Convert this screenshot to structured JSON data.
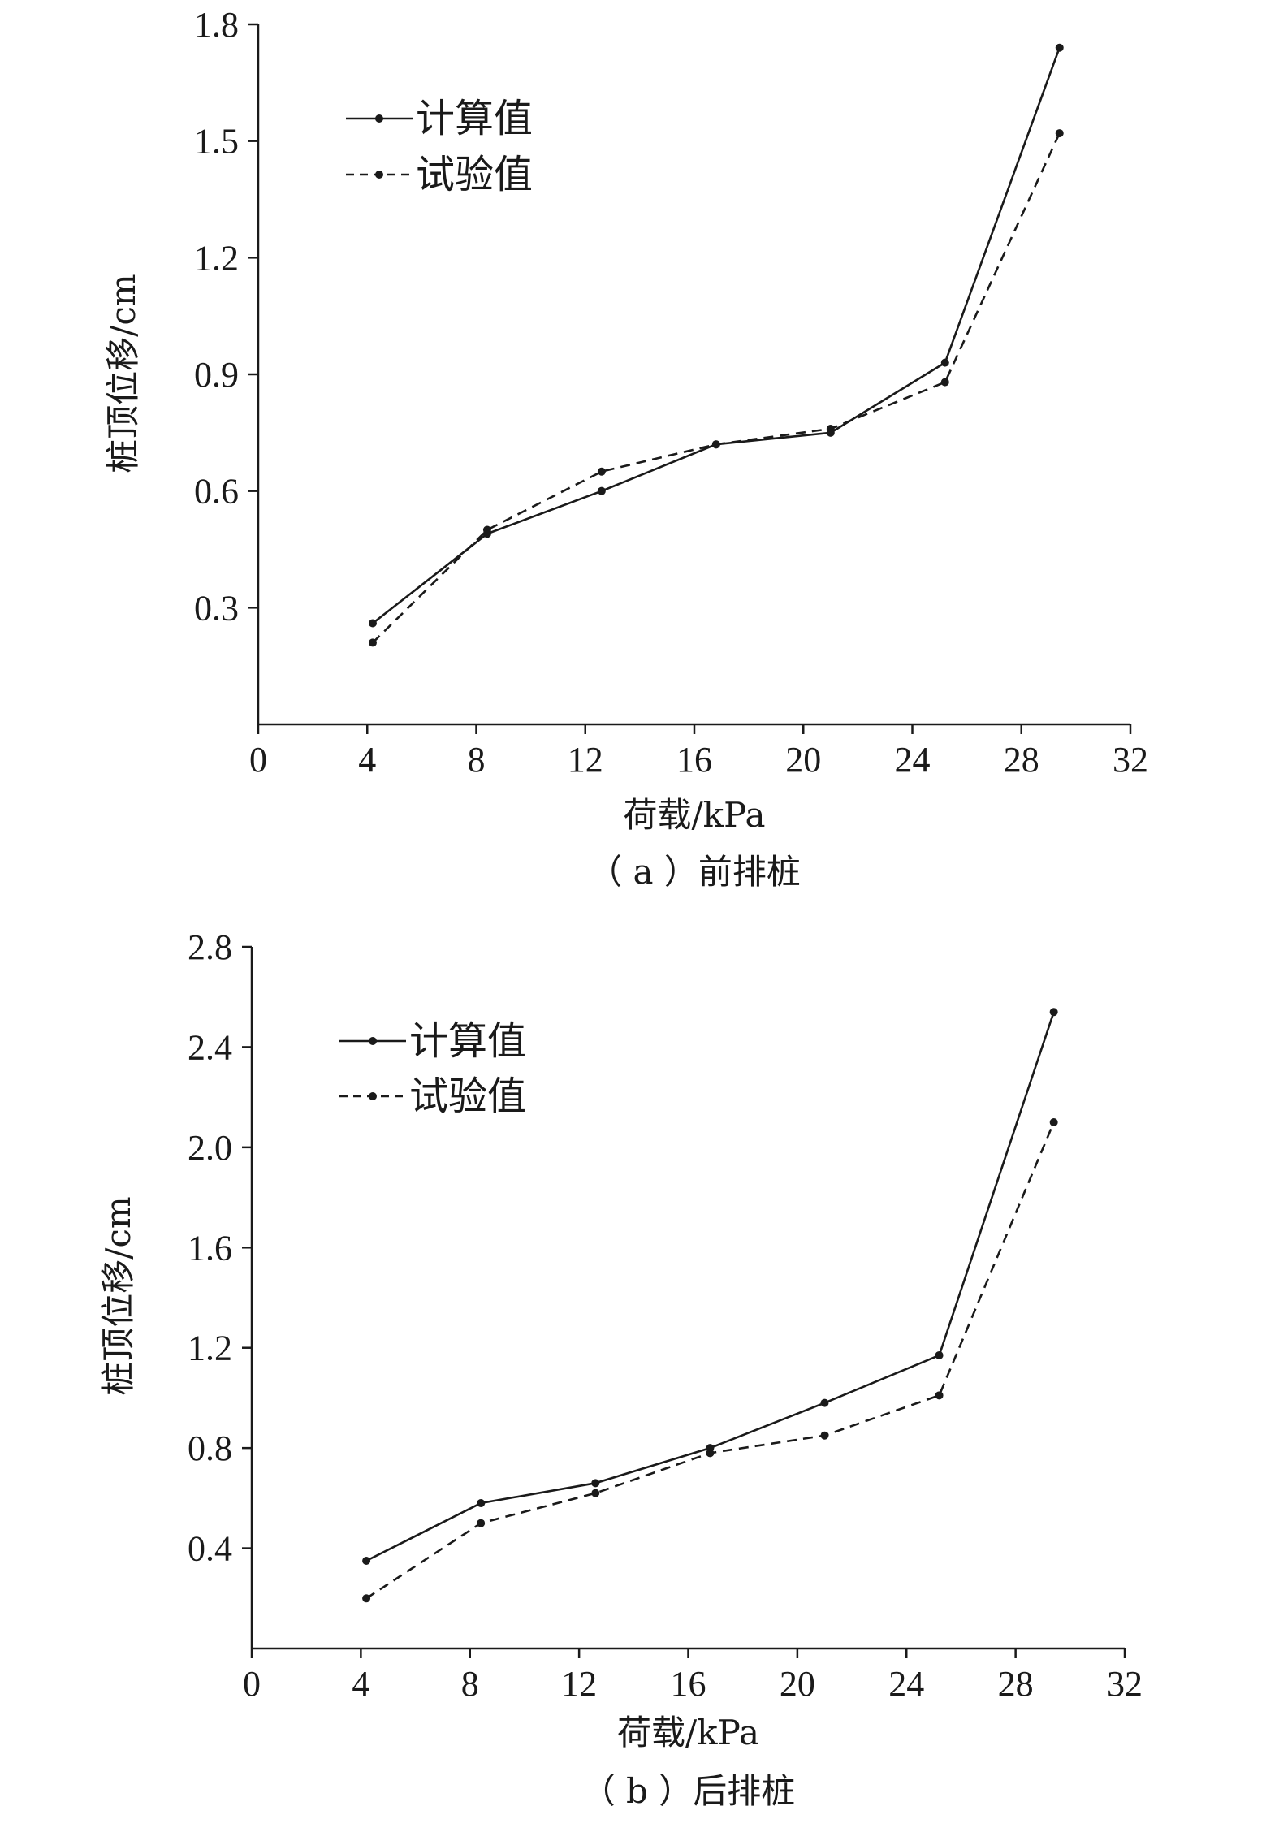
{
  "chart_data": [
    {
      "type": "line",
      "caption": "（ a ）前排桩",
      "xlabel": "荷载/kPa",
      "ylabel": "桩顶位移/cm",
      "xlim": [
        0,
        32
      ],
      "ylim": [
        0,
        1.8
      ],
      "x_ticks": [
        "0",
        "4",
        "8",
        "12",
        "16",
        "20",
        "24",
        "28",
        "32"
      ],
      "y_ticks": [
        "0.3",
        "0.6",
        "0.9",
        "1.2",
        "1.5",
        "1.8"
      ],
      "legend_position": "top-left",
      "x": [
        4.2,
        8.4,
        12.6,
        16.8,
        21.0,
        25.2,
        29.4
      ],
      "series": [
        {
          "name": "计算值",
          "line_style": "solid",
          "values": [
            0.26,
            0.49,
            0.6,
            0.72,
            0.75,
            0.93,
            1.74
          ]
        },
        {
          "name": "试验值",
          "line_style": "dashed",
          "values": [
            0.21,
            0.5,
            0.65,
            0.72,
            0.76,
            0.88,
            1.52
          ]
        }
      ]
    },
    {
      "type": "line",
      "caption": "（ b ）后排桩",
      "xlabel": "荷载/kPa",
      "ylabel": "桩顶位移/cm",
      "xlim": [
        0,
        32
      ],
      "ylim": [
        0,
        2.8
      ],
      "x_ticks": [
        "0",
        "4",
        "8",
        "12",
        "16",
        "20",
        "24",
        "28",
        "32"
      ],
      "y_ticks": [
        "0.4",
        "0.8",
        "1.2",
        "1.6",
        "2.0",
        "2.4",
        "2.8"
      ],
      "legend_position": "top-left",
      "x": [
        4.2,
        8.4,
        12.6,
        16.8,
        21.0,
        25.2,
        29.4
      ],
      "series": [
        {
          "name": "计算值",
          "line_style": "solid",
          "values": [
            0.35,
            0.58,
            0.66,
            0.8,
            0.98,
            1.17,
            2.54
          ]
        },
        {
          "name": "试验值",
          "line_style": "dashed",
          "values": [
            0.2,
            0.5,
            0.62,
            0.78,
            0.85,
            1.01,
            2.1
          ]
        }
      ]
    }
  ]
}
